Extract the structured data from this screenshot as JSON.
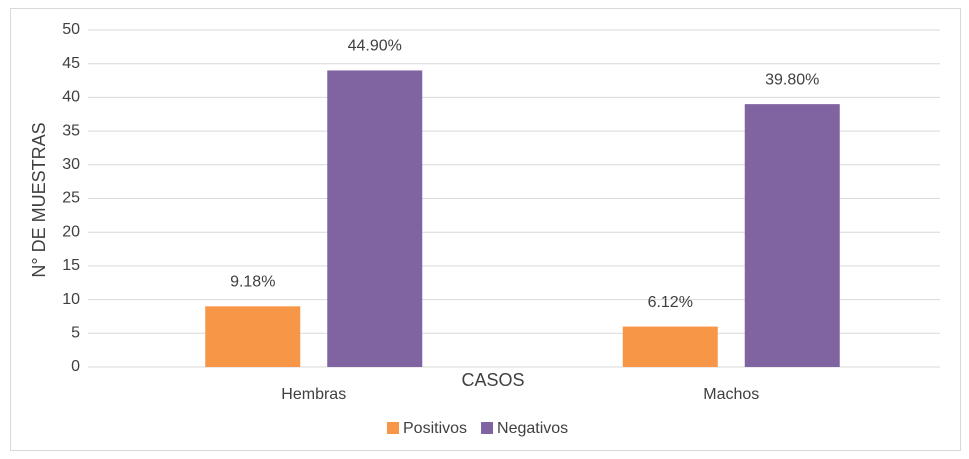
{
  "chart_data": {
    "type": "bar",
    "categories": [
      "Hembras",
      "Machos"
    ],
    "series": [
      {
        "name": "Positivos",
        "color": "#f79646",
        "values": [
          9,
          6
        ],
        "value_labels": [
          "9.18%",
          "6.12%"
        ]
      },
      {
        "name": "Negativos",
        "color": "#8064a2",
        "values": [
          44,
          39
        ],
        "value_labels": [
          "44.90%",
          "39.80%"
        ]
      }
    ],
    "x_label": "CASOS",
    "y_label": "N° DE MUESTRAS",
    "ylim": [
      0,
      50
    ],
    "yticks": [
      0,
      5,
      10,
      15,
      20,
      25,
      30,
      35,
      40,
      45,
      50
    ],
    "grid": true,
    "legend": "bottom"
  }
}
